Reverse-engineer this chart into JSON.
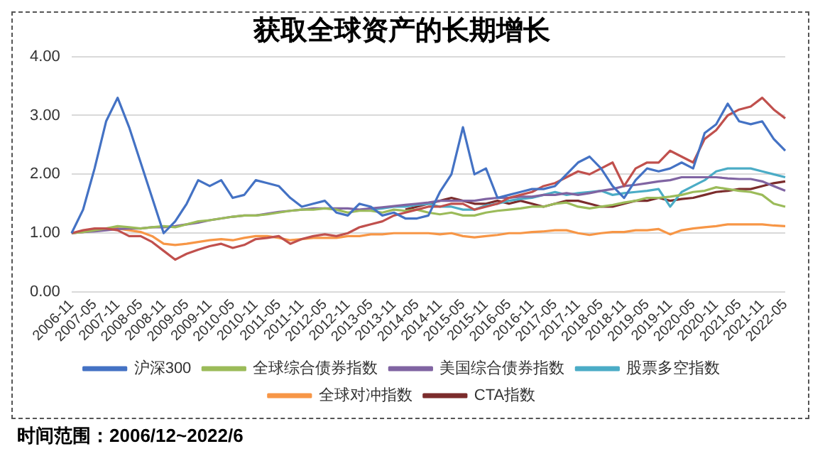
{
  "chart_data": {
    "type": "line",
    "title": "获取全球资产的长期增长",
    "categories": [
      "2006-11",
      null,
      "2007-05",
      null,
      "2007-11",
      null,
      "2008-05",
      null,
      "2008-11",
      null,
      "2009-05",
      null,
      "2009-11",
      null,
      "2010-05",
      null,
      "2010-11",
      null,
      "2011-05",
      null,
      "2011-11",
      null,
      "2012-05",
      null,
      "2012-11",
      null,
      "2013-05",
      null,
      "2013-11",
      null,
      "2014-05",
      null,
      "2014-11",
      null,
      "2015-05",
      null,
      "2015-11",
      null,
      "2016-05",
      null,
      "2016-11",
      null,
      "2017-05",
      null,
      "2017-11",
      null,
      "2018-05",
      null,
      "2018-11",
      null,
      "2019-05",
      null,
      "2019-11",
      null,
      "2020-05",
      null,
      "2020-11",
      null,
      "2021-05",
      null,
      "2021-11",
      null,
      "2022-05"
    ],
    "series": [
      {
        "name": "沪深300",
        "color": "#4472c4",
        "values": [
          1.0,
          1.4,
          2.1,
          2.9,
          3.3,
          2.8,
          2.2,
          1.6,
          1.0,
          1.2,
          1.5,
          1.9,
          1.8,
          1.9,
          1.6,
          1.65,
          1.9,
          1.85,
          1.8,
          1.6,
          1.45,
          1.5,
          1.55,
          1.35,
          1.3,
          1.5,
          1.45,
          1.3,
          1.35,
          1.25,
          1.25,
          1.3,
          1.7,
          2.0,
          2.8,
          2.0,
          2.1,
          1.6,
          1.65,
          1.7,
          1.75,
          1.75,
          1.8,
          2.0,
          2.2,
          2.3,
          2.1,
          1.8,
          1.6,
          1.9,
          2.1,
          2.05,
          2.1,
          2.2,
          2.1,
          2.7,
          2.85,
          3.2,
          2.9,
          2.85,
          2.9,
          2.6,
          2.4
        ]
      },
      {
        "color": "#c0504d",
        "values": [
          1.0,
          1.05,
          1.08,
          1.08,
          1.05,
          0.95,
          0.95,
          0.85,
          0.7,
          0.55,
          0.65,
          0.72,
          0.78,
          0.82,
          0.75,
          0.8,
          0.9,
          0.92,
          0.95,
          0.82,
          0.9,
          0.95,
          0.98,
          0.95,
          1.0,
          1.1,
          1.15,
          1.2,
          1.3,
          1.35,
          1.4,
          1.45,
          1.45,
          1.5,
          1.5,
          1.4,
          1.45,
          1.5,
          1.6,
          1.65,
          1.7,
          1.8,
          1.85,
          1.95,
          2.05,
          2.0,
          2.1,
          2.2,
          1.8,
          2.1,
          2.2,
          2.2,
          2.4,
          2.3,
          2.2,
          2.6,
          2.75,
          3.0,
          3.1,
          3.15,
          3.3,
          3.1,
          2.95
        ]
      },
      {
        "name": "全球综合债券指数",
        "color": "#9bbb59",
        "values": [
          1.0,
          1.02,
          1.05,
          1.08,
          1.12,
          1.1,
          1.08,
          1.1,
          1.12,
          1.1,
          1.15,
          1.2,
          1.22,
          1.25,
          1.28,
          1.3,
          1.3,
          1.32,
          1.35,
          1.38,
          1.4,
          1.4,
          1.42,
          1.4,
          1.35,
          1.38,
          1.38,
          1.35,
          1.4,
          1.38,
          1.4,
          1.35,
          1.32,
          1.35,
          1.3,
          1.3,
          1.35,
          1.38,
          1.4,
          1.42,
          1.45,
          1.45,
          1.5,
          1.52,
          1.45,
          1.42,
          1.45,
          1.48,
          1.52,
          1.55,
          1.6,
          1.6,
          1.62,
          1.65,
          1.7,
          1.72,
          1.78,
          1.75,
          1.72,
          1.7,
          1.65,
          1.5,
          1.45
        ]
      },
      {
        "name": "美国综合债券指数",
        "color": "#8064a2",
        "values": [
          1.0,
          1.02,
          1.03,
          1.05,
          1.07,
          1.08,
          1.08,
          1.1,
          1.1,
          1.12,
          1.15,
          1.18,
          1.22,
          1.25,
          1.28,
          1.3,
          1.3,
          1.33,
          1.36,
          1.38,
          1.4,
          1.42,
          1.42,
          1.42,
          1.42,
          1.4,
          1.42,
          1.44,
          1.46,
          1.48,
          1.5,
          1.52,
          1.55,
          1.55,
          1.55,
          1.55,
          1.58,
          1.6,
          1.6,
          1.62,
          1.62,
          1.65,
          1.65,
          1.68,
          1.65,
          1.68,
          1.72,
          1.75,
          1.8,
          1.82,
          1.85,
          1.88,
          1.9,
          1.95,
          1.95,
          1.95,
          1.95,
          1.93,
          1.92,
          1.92,
          1.88,
          1.8,
          1.72
        ]
      },
      {
        "name": "股票多空指数",
        "color": "#4bacc6",
        "values": [
          null,
          null,
          null,
          null,
          null,
          null,
          null,
          null,
          null,
          null,
          null,
          null,
          null,
          null,
          null,
          null,
          null,
          null,
          null,
          null,
          null,
          null,
          null,
          null,
          null,
          null,
          1.4,
          1.42,
          1.45,
          1.45,
          1.48,
          1.5,
          1.45,
          1.45,
          1.4,
          1.4,
          1.47,
          1.5,
          1.55,
          1.58,
          1.6,
          1.65,
          1.7,
          1.65,
          1.68,
          1.7,
          1.72,
          1.65,
          1.68,
          1.7,
          1.72,
          1.75,
          1.45,
          1.7,
          1.8,
          1.9,
          2.05,
          2.1,
          2.1,
          2.1,
          2.05,
          2.0,
          1.95
        ]
      },
      {
        "name": "全球对冲指数",
        "color": "#f79646",
        "values": [
          1.0,
          1.02,
          1.05,
          1.08,
          1.08,
          1.05,
          1.02,
          0.95,
          0.82,
          0.8,
          0.82,
          0.85,
          0.88,
          0.9,
          0.88,
          0.92,
          0.95,
          0.95,
          0.92,
          0.88,
          0.9,
          0.92,
          0.92,
          0.92,
          0.95,
          0.95,
          0.98,
          0.98,
          1.0,
          1.0,
          1.0,
          1.0,
          0.98,
          1.0,
          0.95,
          0.93,
          0.95,
          0.97,
          1.0,
          1.0,
          1.02,
          1.03,
          1.05,
          1.05,
          1.0,
          0.97,
          1.0,
          1.02,
          1.02,
          1.05,
          1.05,
          1.07,
          0.98,
          1.05,
          1.08,
          1.1,
          1.12,
          1.15,
          1.15,
          1.15,
          1.15,
          1.13,
          1.12
        ]
      },
      {
        "name": "CTA指数",
        "color": "#7b2c2c",
        "values": [
          null,
          null,
          null,
          null,
          null,
          null,
          null,
          null,
          null,
          null,
          null,
          null,
          null,
          null,
          null,
          null,
          null,
          null,
          null,
          null,
          null,
          null,
          null,
          null,
          null,
          null,
          null,
          null,
          null,
          1.4,
          1.45,
          1.5,
          1.55,
          1.6,
          1.55,
          1.5,
          1.5,
          1.55,
          1.5,
          1.55,
          1.5,
          1.45,
          1.5,
          1.55,
          1.55,
          1.5,
          1.45,
          1.45,
          1.5,
          1.55,
          1.55,
          1.6,
          1.55,
          1.58,
          1.6,
          1.65,
          1.7,
          1.72,
          1.75,
          1.75,
          1.8,
          1.85,
          1.88
        ]
      }
    ],
    "ylim": [
      0,
      4
    ],
    "yticks": [
      {
        "value": 0,
        "label": "0.00"
      },
      {
        "value": 1,
        "label": "1.00"
      },
      {
        "value": 2,
        "label": "2.00"
      },
      {
        "value": 3,
        "label": "3.00"
      },
      {
        "value": 4,
        "label": "4.00"
      }
    ],
    "grid": "y",
    "legend": "bottom",
    "annotations": [
      "时间范围：2006/12~2022/6"
    ]
  }
}
